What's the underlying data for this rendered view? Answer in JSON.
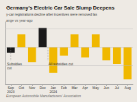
{
  "chart_data": {
    "type": "bar",
    "title": "Germany's Electric Car Sale Slump Deepens",
    "subtitle": "y-car registrations decline after incentives were removed las",
    "ylabel": "ange vs year-ago",
    "source": "European Automobile Manufacturers' Association",
    "categories": [
      "Sep\n2023",
      "Oct",
      "Nov",
      "Dec",
      "Jan\n2024",
      "Feb",
      "Mar",
      "Apr",
      "May",
      "Jun",
      "Jul",
      "Aug"
    ],
    "values": [
      -12,
      28,
      -32,
      42,
      -55,
      -18,
      28,
      -22,
      28,
      -28,
      -36,
      -69
    ],
    "colors": [
      "#1a1a1a",
      "#f0b800",
      "#f0b800",
      "#1a1a1a",
      "#f0b800",
      "#f0b800",
      "#f0b800",
      "#f0b800",
      "#f0b800",
      "#f0b800",
      "#f0b800",
      "#f0b800"
    ],
    "annotations": [
      "Subsidies\ncut",
      "All subsidies cut"
    ],
    "ylim": [
      -80,
      55
    ],
    "yticks": [
      -40,
      0,
      40
    ],
    "grid": true,
    "tick_labels": "x"
  }
}
